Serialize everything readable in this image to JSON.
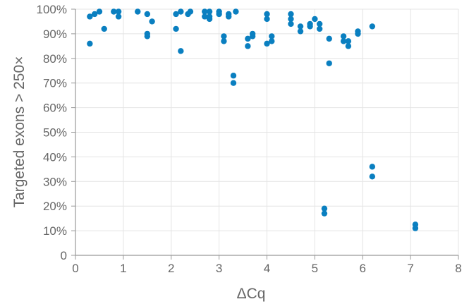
{
  "chart_data": {
    "type": "scatter",
    "title": "",
    "xlabel": "ΔCq",
    "ylabel": "Targeted exons > 250×",
    "xlim": [
      0,
      8
    ],
    "ylim": [
      0,
      100
    ],
    "x_ticks": [
      0,
      1,
      2,
      3,
      4,
      5,
      6,
      7,
      8
    ],
    "x_tick_labels": [
      "0",
      "1",
      "2",
      "3",
      "4",
      "5",
      "6",
      "7",
      "8"
    ],
    "y_ticks": [
      0,
      10,
      20,
      30,
      40,
      50,
      60,
      70,
      80,
      90,
      100
    ],
    "y_tick_labels": [
      "0",
      "10%",
      "20%",
      "30%",
      "40%",
      "50%",
      "60%",
      "70%",
      "80%",
      "90%",
      "100%"
    ],
    "grid": true,
    "legend": "none",
    "point_color": "#0a7fc0",
    "points": [
      {
        "x": 0.3,
        "y": 97
      },
      {
        "x": 0.3,
        "y": 86
      },
      {
        "x": 0.4,
        "y": 98
      },
      {
        "x": 0.5,
        "y": 99
      },
      {
        "x": 0.6,
        "y": 92
      },
      {
        "x": 0.8,
        "y": 99
      },
      {
        "x": 0.9,
        "y": 99
      },
      {
        "x": 0.9,
        "y": 97
      },
      {
        "x": 1.3,
        "y": 99
      },
      {
        "x": 1.5,
        "y": 98
      },
      {
        "x": 1.5,
        "y": 90
      },
      {
        "x": 1.5,
        "y": 89
      },
      {
        "x": 1.6,
        "y": 95
      },
      {
        "x": 2.1,
        "y": 98
      },
      {
        "x": 2.1,
        "y": 92
      },
      {
        "x": 2.2,
        "y": 99
      },
      {
        "x": 2.2,
        "y": 83
      },
      {
        "x": 2.35,
        "y": 98
      },
      {
        "x": 2.4,
        "y": 99
      },
      {
        "x": 2.7,
        "y": 99
      },
      {
        "x": 2.7,
        "y": 97
      },
      {
        "x": 2.8,
        "y": 99
      },
      {
        "x": 2.8,
        "y": 97
      },
      {
        "x": 2.8,
        "y": 96
      },
      {
        "x": 3.0,
        "y": 99
      },
      {
        "x": 3.0,
        "y": 98
      },
      {
        "x": 3.1,
        "y": 89
      },
      {
        "x": 3.1,
        "y": 87
      },
      {
        "x": 3.2,
        "y": 98
      },
      {
        "x": 3.2,
        "y": 97
      },
      {
        "x": 3.3,
        "y": 73
      },
      {
        "x": 3.3,
        "y": 70
      },
      {
        "x": 3.35,
        "y": 99
      },
      {
        "x": 3.6,
        "y": 88
      },
      {
        "x": 3.6,
        "y": 85
      },
      {
        "x": 3.7,
        "y": 90
      },
      {
        "x": 3.7,
        "y": 89
      },
      {
        "x": 4.0,
        "y": 98
      },
      {
        "x": 4.0,
        "y": 96
      },
      {
        "x": 4.0,
        "y": 86
      },
      {
        "x": 4.1,
        "y": 89
      },
      {
        "x": 4.1,
        "y": 87
      },
      {
        "x": 4.5,
        "y": 98
      },
      {
        "x": 4.5,
        "y": 96
      },
      {
        "x": 4.5,
        "y": 94
      },
      {
        "x": 4.7,
        "y": 93
      },
      {
        "x": 4.7,
        "y": 91
      },
      {
        "x": 4.9,
        "y": 94
      },
      {
        "x": 4.9,
        "y": 93
      },
      {
        "x": 5.0,
        "y": 96
      },
      {
        "x": 5.1,
        "y": 94
      },
      {
        "x": 5.1,
        "y": 92
      },
      {
        "x": 5.2,
        "y": 19
      },
      {
        "x": 5.2,
        "y": 17
      },
      {
        "x": 5.3,
        "y": 88
      },
      {
        "x": 5.3,
        "y": 78
      },
      {
        "x": 5.6,
        "y": 89
      },
      {
        "x": 5.6,
        "y": 87
      },
      {
        "x": 5.7,
        "y": 87
      },
      {
        "x": 5.7,
        "y": 85
      },
      {
        "x": 5.9,
        "y": 91
      },
      {
        "x": 5.9,
        "y": 90
      },
      {
        "x": 6.2,
        "y": 93
      },
      {
        "x": 6.2,
        "y": 36
      },
      {
        "x": 6.2,
        "y": 32
      },
      {
        "x": 7.1,
        "y": 12.5
      },
      {
        "x": 7.1,
        "y": 11
      }
    ]
  }
}
